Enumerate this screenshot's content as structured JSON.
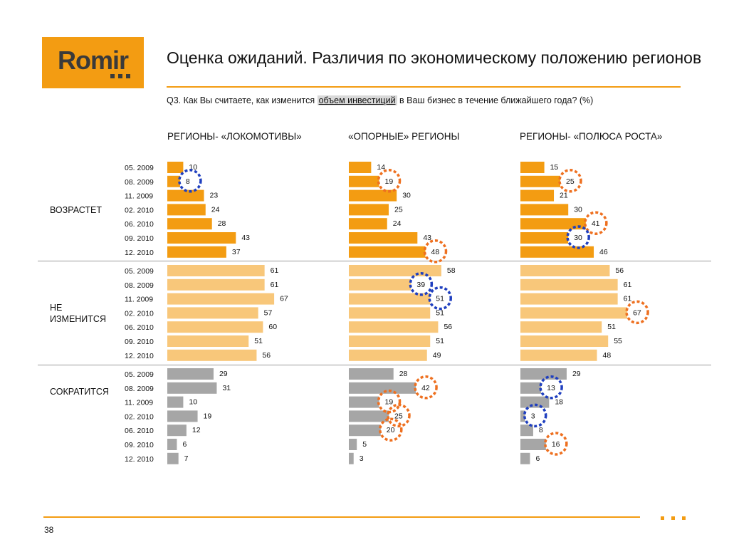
{
  "logo": {
    "text": "Romir"
  },
  "title": "Оценка ожиданий. Различия по экономическому положению регионов",
  "question": {
    "before": "Q3. Как Вы считаете, как изменится ",
    "highlight": "объем инвестиций",
    "after": " в Ваш бизнес в течение ближайшего года? (%)"
  },
  "page_number": "38",
  "chart_data": {
    "type": "bar",
    "orientation": "horizontal",
    "columns": [
      "РЕГИОНЫ- «ЛОКОМОТИВЫ»",
      "«ОПОРНЫЕ» РЕГИОНЫ",
      "РЕГИОНЫ- «ПОЛЮСА РОСТА»"
    ],
    "categories": [
      "05. 2009",
      "08. 2009",
      "11. 2009",
      "02. 2010",
      "06. 2010",
      "09. 2010",
      "12. 2010"
    ],
    "groups": [
      {
        "label": "ВОЗРАСТЕТ",
        "color": "#f39c12",
        "series": [
          [
            10,
            8,
            23,
            24,
            28,
            43,
            37
          ],
          [
            14,
            19,
            30,
            25,
            24,
            43,
            48
          ],
          [
            15,
            25,
            21,
            30,
            41,
            30,
            46
          ]
        ]
      },
      {
        "label": "НЕ ИЗМЕНИТСЯ",
        "color": "#f8c77a",
        "series": [
          [
            61,
            61,
            67,
            57,
            60,
            51,
            56
          ],
          [
            58,
            39,
            51,
            51,
            56,
            51,
            49
          ],
          [
            56,
            61,
            61,
            67,
            51,
            55,
            48
          ]
        ]
      },
      {
        "label": "СОКРАТИТСЯ",
        "color": "#a6a6a6",
        "series": [
          [
            29,
            31,
            10,
            19,
            12,
            6,
            7
          ],
          [
            28,
            42,
            19,
            25,
            20,
            5,
            3
          ],
          [
            29,
            13,
            18,
            3,
            8,
            16,
            6
          ]
        ]
      }
    ],
    "highlights": [
      {
        "group": 0,
        "column": 0,
        "row": 1,
        "color": "#1f3fbf"
      },
      {
        "group": 0,
        "column": 1,
        "row": 1,
        "color": "#ee7020"
      },
      {
        "group": 0,
        "column": 1,
        "row": 6,
        "color": "#ee7020"
      },
      {
        "group": 0,
        "column": 2,
        "row": 1,
        "color": "#ee7020"
      },
      {
        "group": 0,
        "column": 2,
        "row": 4,
        "color": "#ee7020"
      },
      {
        "group": 0,
        "column": 2,
        "row": 5,
        "color": "#1f3fbf"
      },
      {
        "group": 1,
        "column": 1,
        "row": 1,
        "color": "#1f3fbf"
      },
      {
        "group": 1,
        "column": 1,
        "row": 2,
        "color": "#1f3fbf"
      },
      {
        "group": 1,
        "column": 2,
        "row": 3,
        "color": "#ee7020"
      },
      {
        "group": 2,
        "column": 1,
        "row": 1,
        "color": "#ee7020"
      },
      {
        "group": 2,
        "column": 1,
        "row": 2,
        "color": "#ee7020"
      },
      {
        "group": 2,
        "column": 1,
        "row": 3,
        "color": "#ee7020"
      },
      {
        "group": 2,
        "column": 1,
        "row": 4,
        "color": "#ee7020"
      },
      {
        "group": 2,
        "column": 2,
        "row": 1,
        "color": "#1f3fbf"
      },
      {
        "group": 2,
        "column": 2,
        "row": 3,
        "color": "#1f3fbf"
      },
      {
        "group": 2,
        "column": 2,
        "row": 5,
        "color": "#ee7020"
      }
    ]
  }
}
